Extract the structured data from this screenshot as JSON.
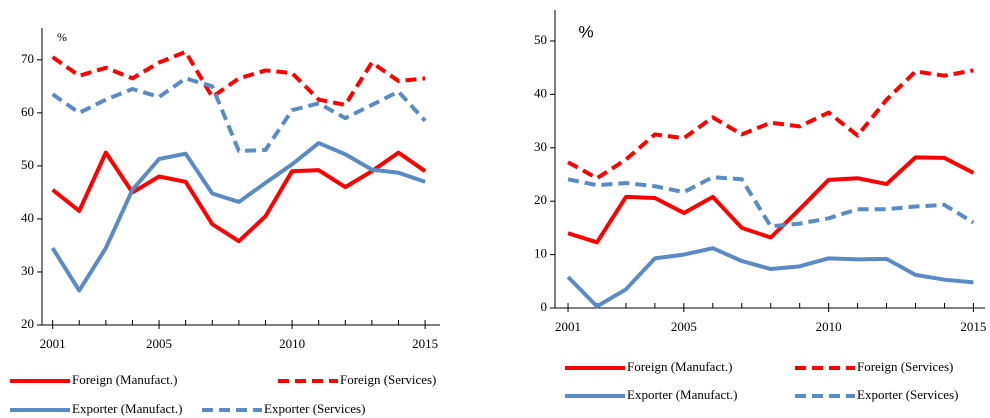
{
  "chart_data": [
    {
      "type": "line",
      "ylabel": "%",
      "x": [
        2001,
        2002,
        2003,
        2004,
        2005,
        2006,
        2007,
        2008,
        2009,
        2010,
        2011,
        2012,
        2013,
        2014,
        2015
      ],
      "xlim": [
        2000.6,
        2015.56
      ],
      "xticks": [
        2001,
        2005,
        2010,
        2015
      ],
      "ylim": [
        20,
        76
      ],
      "yticks": [
        20,
        30,
        40,
        50,
        60,
        70
      ],
      "series": [
        {
          "name": "Foreign (Manufact.)",
          "color": "#ff0000",
          "line_style": "solid",
          "values": [
            45.5,
            41.5,
            52.5,
            45,
            48,
            47,
            39,
            35.8,
            40.5,
            49,
            49.2,
            46,
            49,
            52.5,
            49
          ]
        },
        {
          "name": "Foreign (Services)",
          "color": "#ff0000",
          "line_style": "dashed",
          "values": [
            70.5,
            67,
            68.5,
            66.5,
            69.5,
            71.5,
            63,
            66.5,
            68,
            67.5,
            62.5,
            61.5,
            69.5,
            66,
            66.5
          ]
        },
        {
          "name": "Exporter (Manufact.)",
          "color": "#5b8bc4",
          "line_style": "solid",
          "values": [
            34.5,
            26.5,
            34.5,
            45.5,
            51.3,
            52.3,
            44.8,
            43.2,
            46.8,
            50.3,
            54.3,
            52.2,
            49.3,
            48.7,
            47
          ]
        },
        {
          "name": "Exporter (Services)",
          "color": "#5b8bc4",
          "line_style": "dashed",
          "values": [
            63.5,
            60,
            62.5,
            64.5,
            63,
            66.5,
            65,
            52.8,
            53,
            60.5,
            61.8,
            59,
            61.5,
            64,
            58.5
          ]
        }
      ]
    },
    {
      "type": "line",
      "ylabel": "%",
      "x": [
        2001,
        2002,
        2003,
        2004,
        2005,
        2006,
        2007,
        2008,
        2009,
        2010,
        2011,
        2012,
        2013,
        2014,
        2015
      ],
      "xlim": [
        2000.55,
        2015.4
      ],
      "xticks": [
        2001,
        2005,
        2010,
        2015
      ],
      "ylim": [
        0,
        55.8
      ],
      "yticks": [
        0,
        10,
        20,
        30,
        40,
        50
      ],
      "series": [
        {
          "name": "Foreign (Manufact.)",
          "color": "#ff0000",
          "line_style": "solid",
          "values": [
            14,
            12.3,
            20.8,
            20.6,
            17.8,
            20.8,
            15,
            13.2,
            18.5,
            24,
            24.3,
            23.2,
            28.2,
            28.1,
            25.3
          ]
        },
        {
          "name": "Foreign (Services)",
          "color": "#ff0000",
          "line_style": "dashed",
          "values": [
            27.3,
            24.3,
            27.8,
            32.5,
            31.8,
            35.7,
            32.5,
            34.7,
            34,
            36.6,
            32.3,
            39,
            44.3,
            43.5,
            44.5
          ]
        },
        {
          "name": "Exporter (Manufact.)",
          "color": "#5b8bc4",
          "line_style": "solid",
          "values": [
            5.8,
            0.3,
            3.5,
            9.3,
            10,
            11.2,
            8.8,
            7.3,
            7.8,
            9.3,
            9.1,
            9.2,
            6.2,
            5.3,
            4.8
          ]
        },
        {
          "name": "Exporter (Services)",
          "color": "#5b8bc4",
          "line_style": "dashed",
          "values": [
            24.1,
            23,
            23.4,
            22.8,
            21.7,
            24.5,
            24.1,
            15.3,
            15.8,
            16.8,
            18.5,
            18.5,
            19,
            19.3,
            16
          ]
        }
      ]
    }
  ]
}
